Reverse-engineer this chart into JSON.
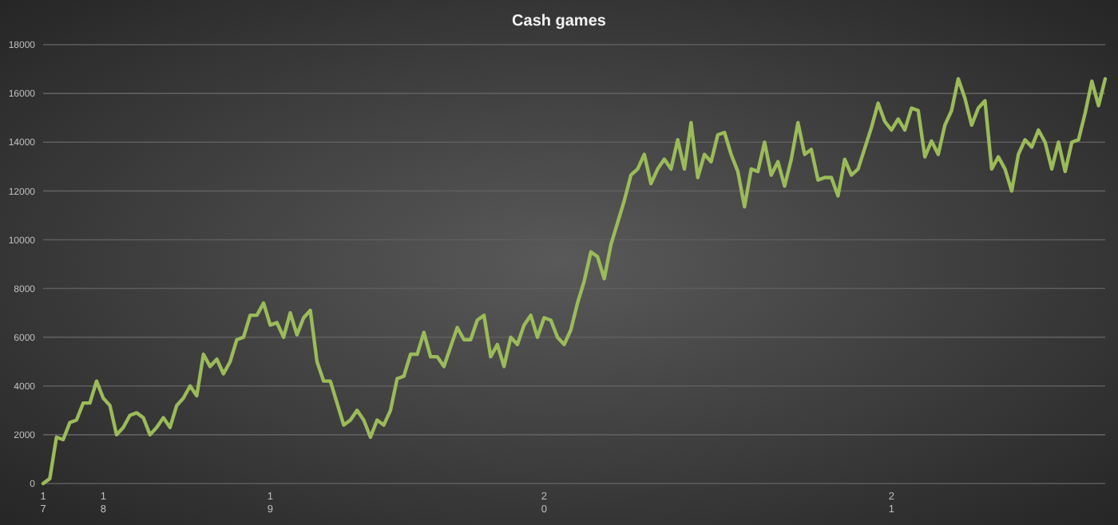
{
  "chart_data": {
    "type": "line",
    "title": "Cash games",
    "categories": [
      "17",
      null,
      null,
      null,
      null,
      null,
      null,
      null,
      null,
      "18",
      null,
      null,
      null,
      null,
      null,
      null,
      null,
      null,
      null,
      null,
      null,
      null,
      null,
      null,
      null,
      null,
      null,
      null,
      null,
      null,
      null,
      null,
      null,
      null,
      "19",
      null,
      null,
      null,
      null,
      null,
      null,
      null,
      null,
      null,
      null,
      null,
      null,
      null,
      null,
      null,
      null,
      null,
      null,
      null,
      null,
      null,
      null,
      null,
      null,
      null,
      null,
      null,
      null,
      null,
      null,
      null,
      null,
      null,
      null,
      null,
      null,
      null,
      null,
      null,
      null,
      "20",
      null,
      null,
      null,
      null,
      null,
      null,
      null,
      null,
      null,
      null,
      null,
      null,
      null,
      null,
      null,
      null,
      null,
      null,
      null,
      null,
      null,
      null,
      null,
      null,
      null,
      null,
      null,
      null,
      null,
      null,
      null,
      null,
      null,
      null,
      null,
      null,
      null,
      null,
      null,
      null,
      null,
      null,
      null,
      null,
      null,
      null,
      null,
      null,
      null,
      null,
      null,
      "21",
      null,
      null,
      null,
      null,
      null,
      null,
      null,
      null,
      null,
      null,
      null,
      null,
      null,
      null,
      null,
      null,
      null,
      null,
      null,
      null,
      null,
      null,
      null,
      null,
      null,
      null,
      null,
      null,
      null,
      null,
      null,
      null
    ],
    "series": [
      {
        "color": "#9bbb59",
        "values": [
          0,
          200,
          1900,
          1800,
          2500,
          2600,
          3300,
          3300,
          4200,
          3500,
          3200,
          2000,
          2300,
          2800,
          2900,
          2700,
          2000,
          2300,
          2700,
          2300,
          3200,
          3500,
          4000,
          3600,
          5300,
          4800,
          5100,
          4500,
          5000,
          5900,
          6000,
          6900,
          6900,
          7400,
          6500,
          6600,
          6000,
          7000,
          6100,
          6800,
          7100,
          5000,
          4200,
          4200,
          3300,
          2400,
          2600,
          3000,
          2600,
          1900,
          2600,
          2400,
          3000,
          4300,
          4400,
          5300,
          5300,
          6200,
          5200,
          5200,
          4800,
          5600,
          6400,
          5900,
          5900,
          6700,
          6900,
          5200,
          5700,
          4800,
          6000,
          5700,
          6500,
          6900,
          6000,
          6800,
          6700,
          6000,
          5700,
          6300,
          7400,
          8300,
          9500,
          9300,
          8400,
          9800,
          10700,
          11600,
          12650,
          12900,
          13500,
          12300,
          12900,
          13300,
          12900,
          14100,
          12900,
          14800,
          12550,
          13500,
          13200,
          14300,
          14400,
          13500,
          12800,
          11350,
          12900,
          12800,
          14000,
          12650,
          13200,
          12200,
          13300,
          14800,
          13500,
          13700,
          12450,
          12550,
          12550,
          11800,
          13300,
          12650,
          12900,
          13750,
          14600,
          15600,
          14850,
          14500,
          14950,
          14500,
          15400,
          15300,
          13400,
          14050,
          13500,
          14700,
          15300,
          16600,
          15800,
          14700,
          15400,
          15700,
          12900,
          13400,
          12900,
          12000,
          13500,
          14100,
          13800,
          14500,
          14000,
          12900,
          14000,
          12800,
          14000,
          14100,
          15200,
          16500,
          15500,
          16600
        ]
      }
    ],
    "ylim": [
      0,
      18000
    ],
    "yticks": [
      0,
      2000,
      4000,
      6000,
      8000,
      10000,
      12000,
      14000,
      16000,
      18000
    ],
    "grid": "y",
    "line_style": "solid",
    "marker": "none"
  }
}
